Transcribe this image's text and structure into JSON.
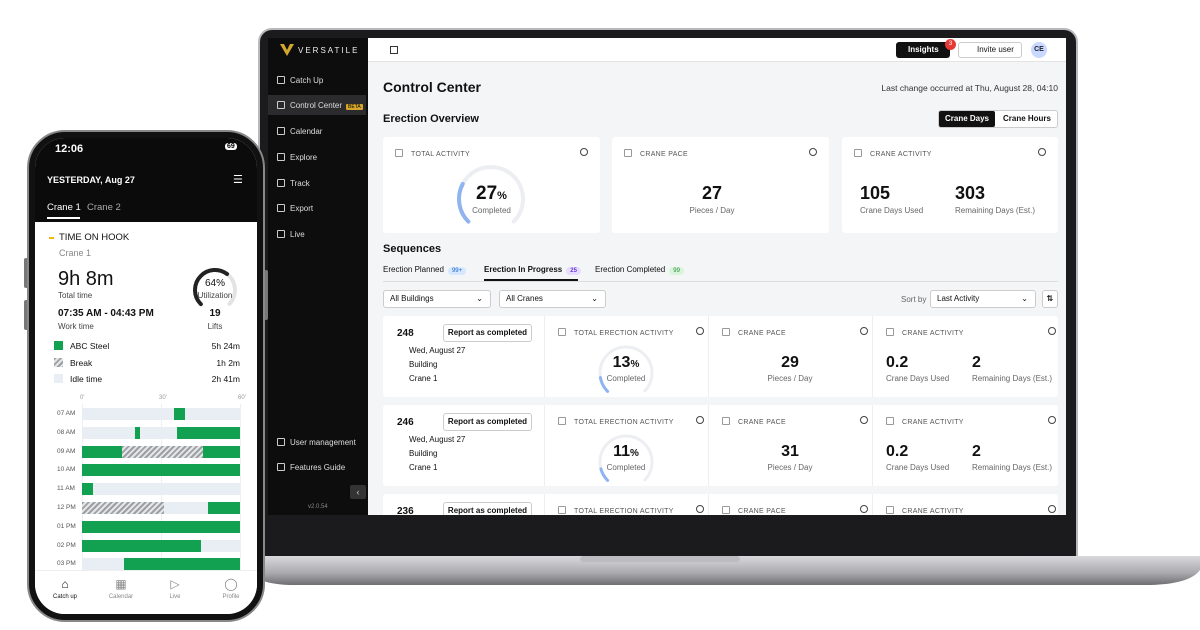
{
  "phone": {
    "status_time": "12:06",
    "battery": "69",
    "date": "YESTERDAY, Aug 27",
    "tabs": [
      "Crane 1",
      "Crane 2"
    ],
    "section_title": "TIME ON HOOK",
    "crane": "Crane 1",
    "total_time": "9h 8m",
    "total_time_label": "Total time",
    "utilization": {
      "value": 64,
      "unit": "%"
    },
    "utilization_label": "Utilization",
    "work_time": "07:35 AM - 04:43 PM",
    "work_time_label": "Work time",
    "lifts": "19",
    "lifts_label": "Lifts",
    "legend": [
      {
        "name": "ABC Steel",
        "value": "5h 24m",
        "color": "#12a150"
      },
      {
        "name": "Break",
        "value": "1h 2m",
        "color": "#9aa0a6"
      },
      {
        "name": "Idle time",
        "value": "2h 41m",
        "color": "#e9eef5"
      }
    ],
    "timeline_ticks": [
      "0'",
      "30'",
      "60'"
    ],
    "timeline": [
      {
        "hour": "07 AM",
        "work": [
          [
            35,
            39
          ]
        ],
        "break": []
      },
      {
        "hour": "08 AM",
        "work": [
          [
            20,
            22
          ],
          [
            36,
            60
          ]
        ],
        "break": []
      },
      {
        "hour": "09 AM",
        "work": [
          [
            0,
            15
          ],
          [
            46,
            60
          ]
        ],
        "break": [
          [
            15,
            46
          ]
        ]
      },
      {
        "hour": "10 AM",
        "work": [
          [
            0,
            60
          ]
        ],
        "break": []
      },
      {
        "hour": "11 AM",
        "work": [
          [
            0,
            4
          ]
        ],
        "break": []
      },
      {
        "hour": "12 PM",
        "work": [
          [
            48,
            60
          ]
        ],
        "break": [
          [
            0,
            31
          ]
        ]
      },
      {
        "hour": "01 PM",
        "work": [
          [
            0,
            60
          ]
        ],
        "break": []
      },
      {
        "hour": "02 PM",
        "work": [
          [
            0,
            45
          ]
        ],
        "break": []
      },
      {
        "hour": "03 PM",
        "work": [
          [
            16,
            60
          ]
        ],
        "break": []
      }
    ],
    "nav": [
      "Catch up",
      "Calendar",
      "Live",
      "Profile"
    ]
  },
  "laptop": {
    "logo": "VERSATILE",
    "nav": [
      "Catch Up",
      "Control Center",
      "Calendar",
      "Explore",
      "Track",
      "Export",
      "Live"
    ],
    "beta": "BETA",
    "nav_bottom": [
      "User management",
      "Features Guide"
    ],
    "version": "v2.0.54",
    "insights": "Insights",
    "insights_badge": "3",
    "invite": "Invite user",
    "avatar": "CE",
    "title": "Control Center",
    "last_change": "Last change occurred at Thu, August 28, 04:10",
    "overview_title": "Erection Overview",
    "toggle": [
      "Crane Days",
      "Crane Hours"
    ],
    "cards": {
      "total_activity": "TOTAL ACTIVITY",
      "activity": {
        "value": 27,
        "unit": "%"
      },
      "completed": "Completed",
      "crane_pace": "CRANE PACE",
      "pace": "27",
      "pace_label": "Pieces / Day",
      "crane_activity": "CRANE ACTIVITY",
      "days_used": "105",
      "days_used_label": "Crane Days Used",
      "remaining": "303",
      "remaining_label": "Remaining Days (Est.)"
    },
    "sequences_title": "Sequences",
    "tabs": [
      {
        "name": "Erection Planned",
        "count": "99+"
      },
      {
        "name": "Erection In Progress",
        "count": "25"
      },
      {
        "name": "Erection Completed",
        "count": "99"
      }
    ],
    "filters": [
      "All Buildings",
      "All Cranes"
    ],
    "sort_by": "Sort by",
    "sort_value": "Last Activity",
    "sequence_labels": {
      "report": "Report as completed",
      "total": "TOTAL ERECTION ACTIVITY",
      "pace": "CRANE PACE",
      "activity": "CRANE ACTIVITY",
      "completed": "Completed",
      "pieces": "Pieces / Day",
      "used": "Crane Days Used",
      "remaining": "Remaining Days (Est.)"
    },
    "sequences": [
      {
        "id": "248",
        "date": "Wed, August 27",
        "building": "Building",
        "crane": "Crane 1",
        "activity": {
          "value": 13,
          "unit": "%"
        },
        "pace": "29",
        "days_used": "0.2",
        "remaining": "2"
      },
      {
        "id": "246",
        "date": "Wed, August 27",
        "building": "Building",
        "crane": "Crane 1",
        "activity": {
          "value": 11,
          "unit": "%"
        },
        "pace": "31",
        "days_used": "0.2",
        "remaining": "2"
      },
      {
        "id": "236"
      }
    ]
  }
}
